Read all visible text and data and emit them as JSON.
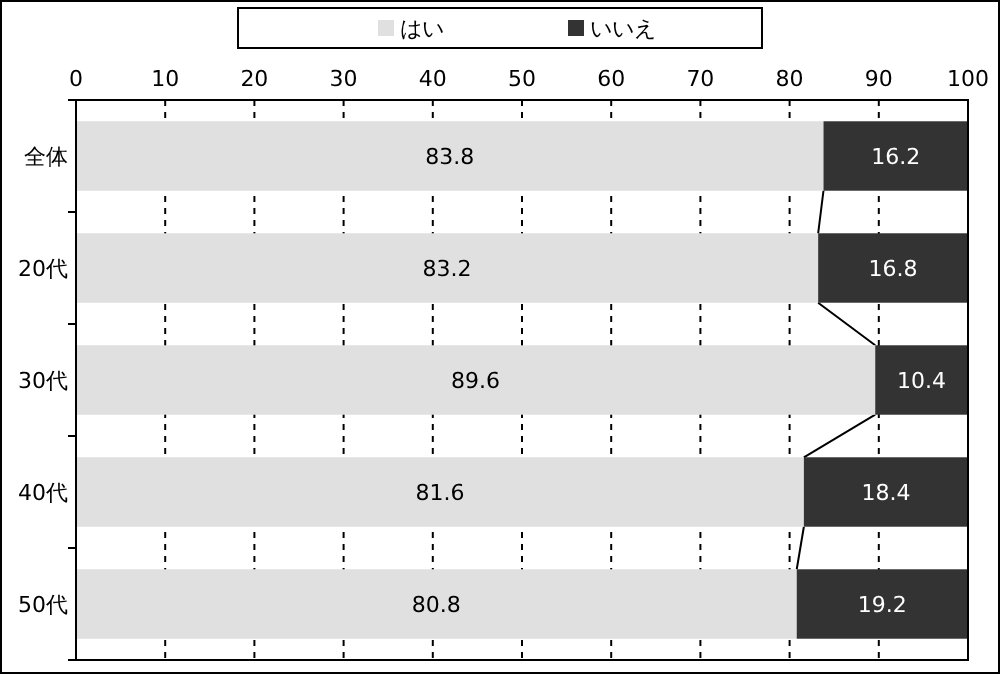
{
  "chart_data": {
    "type": "bar",
    "orientation": "horizontal",
    "stacked": true,
    "categories": [
      "全体",
      "20代",
      "30代",
      "40代",
      "50代"
    ],
    "series": [
      {
        "name": "はい",
        "color": "#e0e0e0",
        "values": [
          83.8,
          83.2,
          89.6,
          81.6,
          80.8
        ]
      },
      {
        "name": "いいえ",
        "color": "#333333",
        "values": [
          16.2,
          16.8,
          10.4,
          18.4,
          19.2
        ]
      }
    ],
    "xlim": [
      0,
      100
    ],
    "xticks": [
      0,
      10,
      20,
      30,
      40,
      50,
      60,
      70,
      80,
      90,
      100
    ],
    "grid": "x",
    "legend": "top",
    "data_labels": true
  }
}
